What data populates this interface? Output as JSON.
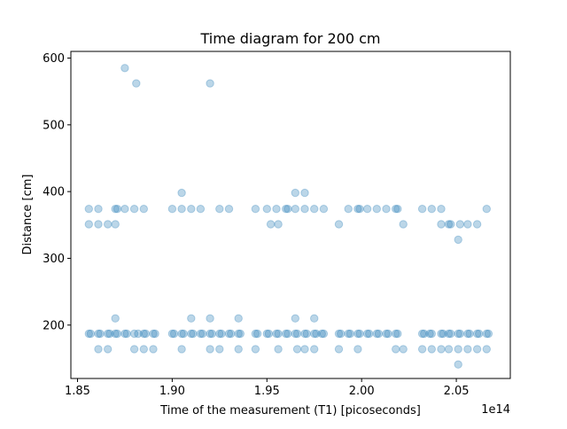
{
  "chart_data": {
    "type": "scatter",
    "title": "Time diagram for 200 cm",
    "xlabel": "Time of the measurement (T1) [picoseconds]",
    "ylabel": "Distance [cm]",
    "x_offset_label": "1e14",
    "x_scale": 100000000000000.0,
    "xlim": [
      1.8465,
      2.0785
    ],
    "ylim": [
      120,
      610
    ],
    "x_ticks": [
      1.85,
      1.9,
      1.95,
      2.0,
      2.05
    ],
    "x_tick_labels": [
      "1.85",
      "1.90",
      "1.95",
      "2.00",
      "2.05"
    ],
    "y_ticks": [
      200,
      300,
      400,
      500,
      600
    ],
    "y_tick_labels": [
      "200",
      "300",
      "400",
      "500",
      "600"
    ],
    "grid": false,
    "marker_color": "#1f77b4",
    "marker_alpha": 0.3,
    "series": [
      {
        "x": [
          1.856,
          1.857,
          1.861,
          1.862,
          1.866,
          1.867,
          1.87,
          1.871,
          1.875,
          1.876,
          1.88,
          1.882,
          1.885,
          1.886,
          1.89,
          1.891,
          1.9,
          1.901,
          1.905,
          1.906,
          1.91,
          1.911,
          1.915,
          1.916,
          1.92,
          1.921,
          1.925,
          1.926,
          1.93,
          1.931,
          1.935,
          1.936,
          1.944,
          1.945,
          1.95,
          1.951,
          1.955,
          1.956,
          1.96,
          1.961,
          1.965,
          1.966,
          1.97,
          1.971,
          1.975,
          1.976,
          1.979,
          1.98,
          1.988,
          1.989,
          1.993,
          1.994,
          1.998,
          1.999,
          2.003,
          2.004,
          2.008,
          2.009,
          2.013,
          2.014,
          2.018,
          2.019,
          2.032,
          2.033,
          2.036,
          2.037,
          2.042,
          2.043,
          2.046,
          2.047,
          2.051,
          2.052,
          2.056,
          2.057,
          2.061,
          2.062,
          2.066,
          2.067,
          1.861,
          1.866,
          1.88,
          1.885,
          1.89,
          1.905,
          1.92,
          1.925,
          1.935,
          1.944,
          1.956,
          1.966,
          1.97,
          1.975,
          1.988,
          1.998,
          2.018,
          2.022,
          2.032,
          2.037,
          2.042,
          2.046,
          2.051,
          2.056,
          2.061,
          2.066,
          1.87,
          1.91,
          1.92,
          1.935,
          1.965,
          1.975,
          2.051,
          1.856,
          1.861,
          1.866,
          1.87,
          1.952,
          1.956,
          1.988,
          2.022,
          2.042,
          2.046,
          2.047,
          2.052,
          2.056,
          2.061,
          1.856,
          1.861,
          1.87,
          1.871,
          1.875,
          1.88,
          1.885,
          1.9,
          1.905,
          1.91,
          1.915,
          1.925,
          1.93,
          1.944,
          1.95,
          1.955,
          1.96,
          1.961,
          1.965,
          1.97,
          1.975,
          1.98,
          1.993,
          1.998,
          1.999,
          2.003,
          2.008,
          2.013,
          2.018,
          2.019,
          2.032,
          2.037,
          2.042,
          2.066,
          1.905,
          1.965,
          1.97,
          2.051,
          1.881,
          1.92,
          1.875
        ],
        "y": [
          187,
          187,
          187,
          187,
          187,
          187,
          187,
          187,
          187,
          187,
          187,
          187,
          187,
          187,
          187,
          187,
          187,
          187,
          187,
          187,
          187,
          187,
          187,
          187,
          187,
          187,
          187,
          187,
          187,
          187,
          187,
          187,
          187,
          187,
          187,
          187,
          187,
          187,
          187,
          187,
          187,
          187,
          187,
          187,
          187,
          187,
          187,
          187,
          187,
          187,
          187,
          187,
          187,
          187,
          187,
          187,
          187,
          187,
          187,
          187,
          187,
          187,
          187,
          187,
          187,
          187,
          187,
          187,
          187,
          187,
          187,
          187,
          187,
          187,
          187,
          187,
          187,
          187,
          164,
          164,
          164,
          164,
          164,
          164,
          164,
          164,
          164,
          164,
          164,
          164,
          164,
          164,
          164,
          164,
          164,
          164,
          164,
          164,
          164,
          164,
          164,
          164,
          164,
          164,
          210,
          210,
          210,
          210,
          210,
          210,
          141,
          351,
          351,
          351,
          351,
          351,
          351,
          351,
          351,
          351,
          351,
          351,
          351,
          351,
          351,
          374,
          374,
          374,
          374,
          374,
          374,
          374,
          374,
          374,
          374,
          374,
          374,
          374,
          374,
          374,
          374,
          374,
          374,
          374,
          374,
          374,
          374,
          374,
          374,
          374,
          374,
          374,
          374,
          374,
          374,
          374,
          374,
          374,
          374,
          398,
          398,
          398,
          328,
          562,
          562,
          585
        ]
      }
    ]
  }
}
